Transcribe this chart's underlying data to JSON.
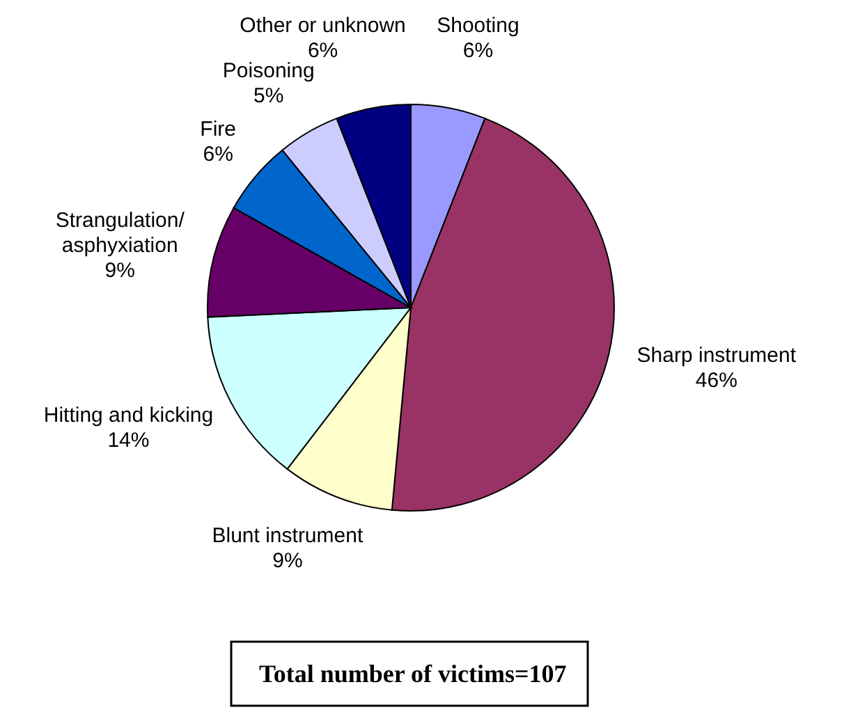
{
  "chart_data": {
    "type": "pie",
    "categories": [
      "Shooting",
      "Sharp instrument",
      "Blunt instrument",
      "Hitting and kicking",
      "Strangulation/ asphyxiation",
      "Fire",
      "Poisoning",
      "Other or unknown"
    ],
    "values": [
      6,
      46,
      9,
      14,
      9,
      6,
      5,
      6
    ],
    "value_labels": [
      "6%",
      "46%",
      "9%",
      "14%",
      "9%",
      "6%",
      "5%",
      "6%"
    ],
    "colors": [
      "#9999ff",
      "#993366",
      "#ffffcc",
      "#ccffff",
      "#660066",
      "#0066cc",
      "#ccccff",
      "#000080"
    ],
    "annotations": [
      "Total number of victims=107"
    ]
  }
}
